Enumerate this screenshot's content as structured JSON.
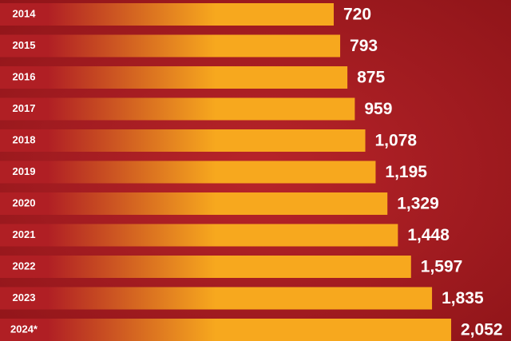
{
  "chart_data": {
    "type": "bar",
    "orientation": "horizontal",
    "categories": [
      "2014",
      "2015",
      "2016",
      "2017",
      "2018",
      "2019",
      "2020",
      "2021",
      "2022",
      "2023",
      "2024*"
    ],
    "values": [
      720,
      793,
      875,
      959,
      1078,
      1195,
      1329,
      1448,
      1597,
      1835,
      2052
    ],
    "value_labels": [
      "720",
      "793",
      "875",
      "959",
      "1,078",
      "1,195",
      "1,329",
      "1,448",
      "1,597",
      "1,835",
      "2,052"
    ],
    "color": "#f7a81e"
  }
}
